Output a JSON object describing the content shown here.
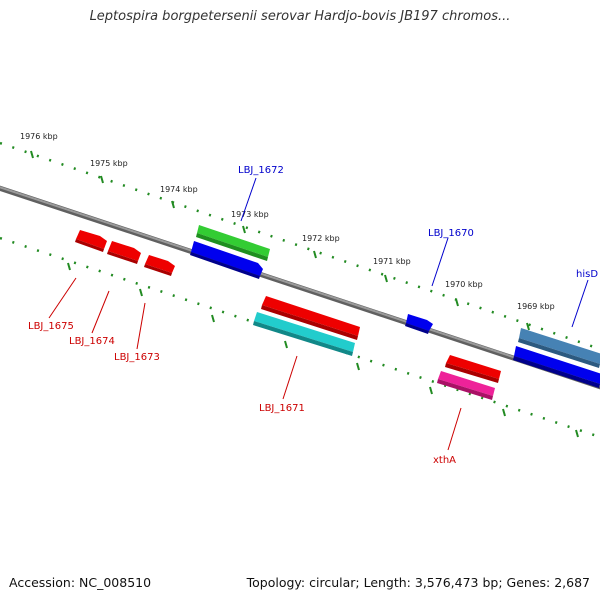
{
  "title": "Leptospira borgpetersenii serovar Hardjo-bovis JB197 chromos...",
  "footer": {
    "accession": "Accession: NC_008510",
    "summary": "Topology: circular; Length: 3,576,473 bp; Genes: 2,687"
  },
  "ticks": [
    "1976 kbp",
    "1975 kbp",
    "1974 kbp",
    "1973 kbp",
    "1972 kbp",
    "1971 kbp",
    "1970 kbp",
    "1969 kbp"
  ],
  "genes": [
    {
      "label": "LBJ_1672",
      "strand": "forward",
      "color": "#33cc33"
    },
    {
      "label": "LBJ_1670",
      "strand": "forward",
      "color": "#0000ee"
    },
    {
      "label": "hisD",
      "strand": "forward",
      "color": "#4682b4"
    },
    {
      "label": "LBJ_1675",
      "strand": "reverse",
      "color": "#ee0000"
    },
    {
      "label": "LBJ_1674",
      "strand": "reverse",
      "color": "#ee0000"
    },
    {
      "label": "LBJ_1673",
      "strand": "reverse",
      "color": "#ee0000"
    },
    {
      "label": "LBJ_1671",
      "strand": "reverse",
      "color": "#ee0000"
    },
    {
      "label": "xthA",
      "strand": "reverse",
      "color": "#ee0000"
    }
  ],
  "colors": {
    "backbone": "#808080",
    "tick_dots": "#228b22",
    "forward_label": "#0000cc",
    "reverse_label": "#cc0000",
    "green": "#33cc33",
    "blue": "#0000ee",
    "red": "#ee0000",
    "cyan": "#22cccc",
    "magenta": "#ee2299",
    "steelblue": "#4682b4"
  }
}
